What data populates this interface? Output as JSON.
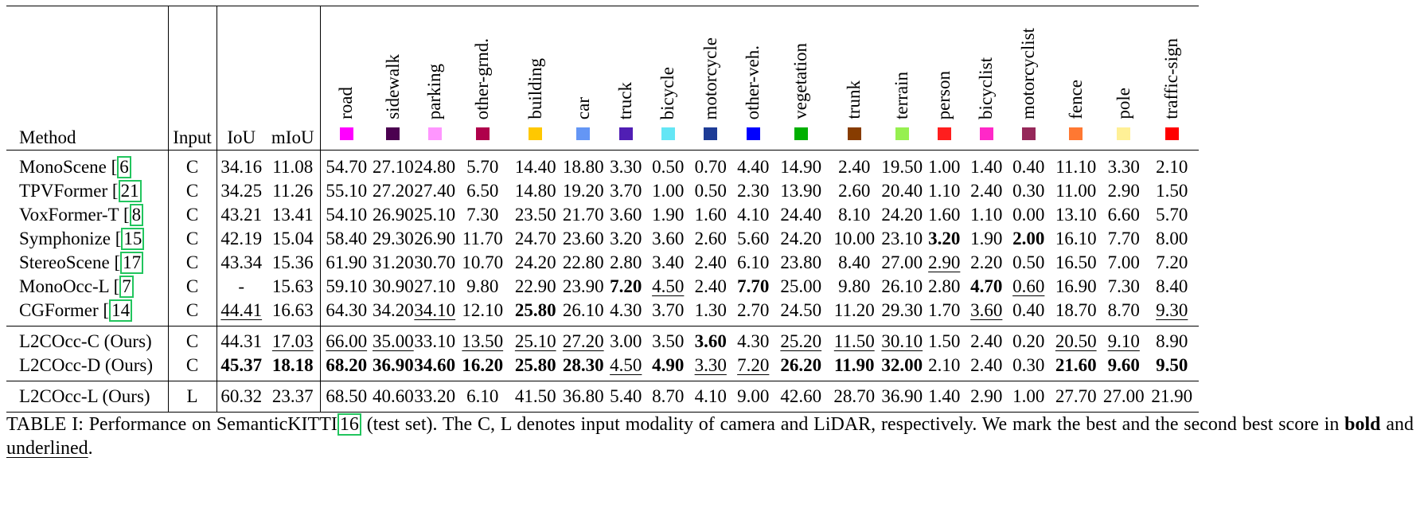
{
  "table": {
    "header": {
      "method": "Method",
      "input": "Input",
      "iou": "IoU",
      "miou": "mIoU"
    },
    "classes": [
      {
        "name": "road",
        "color": "#ff00ff"
      },
      {
        "name": "sidewalk",
        "color": "#4b0050"
      },
      {
        "name": "parking",
        "color": "#ff96ff"
      },
      {
        "name": "other-grnd.",
        "color": "#af004b"
      },
      {
        "name": "building",
        "color": "#ffc800"
      },
      {
        "name": "car",
        "color": "#6496f5"
      },
      {
        "name": "truck",
        "color": "#501eb4"
      },
      {
        "name": "bicycle",
        "color": "#64e6f5"
      },
      {
        "name": "motorcycle",
        "color": "#1e3c96"
      },
      {
        "name": "other-veh.",
        "color": "#0000ff"
      },
      {
        "name": "vegetation",
        "color": "#00af00"
      },
      {
        "name": "trunk",
        "color": "#873c00"
      },
      {
        "name": "terrain",
        "color": "#96f050"
      },
      {
        "name": "person",
        "color": "#ff1e1e"
      },
      {
        "name": "bicyclist",
        "color": "#ff28c8"
      },
      {
        "name": "motorcyclist",
        "color": "#96285a"
      },
      {
        "name": "fence",
        "color": "#ff7832"
      },
      {
        "name": "pole",
        "color": "#fff096"
      },
      {
        "name": "traffic-sign",
        "color": "#ff0000"
      }
    ],
    "rows": [
      {
        "method": "MonoScene",
        "ref": "6",
        "input": "C",
        "iou": "34.16",
        "miou": "11.08",
        "vals": [
          "54.70",
          "27.10",
          "24.80",
          "5.70",
          "14.40",
          "18.80",
          "3.30",
          "0.50",
          "0.70",
          "4.40",
          "14.90",
          "2.40",
          "19.50",
          "1.00",
          "1.40",
          "0.40",
          "11.10",
          "3.30",
          "2.10"
        ]
      },
      {
        "method": "TPVFormer",
        "ref": "21",
        "input": "C",
        "iou": "34.25",
        "miou": "11.26",
        "vals": [
          "55.10",
          "27.20",
          "27.40",
          "6.50",
          "14.80",
          "19.20",
          "3.70",
          "1.00",
          "0.50",
          "2.30",
          "13.90",
          "2.60",
          "20.40",
          "1.10",
          "2.40",
          "0.30",
          "11.00",
          "2.90",
          "1.50"
        ]
      },
      {
        "method": "VoxFormer-T",
        "ref": "8",
        "input": "C",
        "iou": "43.21",
        "miou": "13.41",
        "vals": [
          "54.10",
          "26.90",
          "25.10",
          "7.30",
          "23.50",
          "21.70",
          "3.60",
          "1.90",
          "1.60",
          "4.10",
          "24.40",
          "8.10",
          "24.20",
          "1.60",
          "1.10",
          "0.00",
          "13.10",
          "6.60",
          "5.70"
        ]
      },
      {
        "method": "Symphonize",
        "ref": "15",
        "input": "C",
        "iou": "42.19",
        "miou": "15.04",
        "vals": [
          "58.40",
          "29.30",
          "26.90",
          "11.70",
          "24.70",
          "23.60",
          "3.20",
          "3.60",
          "2.60",
          "5.60",
          "24.20",
          "10.00",
          "23.10",
          "3.20",
          "1.90",
          "2.00",
          "16.10",
          "7.70",
          "8.00"
        ]
      },
      {
        "method": "StereoScene",
        "ref": "17",
        "input": "C",
        "iou": "43.34",
        "miou": "15.36",
        "vals": [
          "61.90",
          "31.20",
          "30.70",
          "10.70",
          "24.20",
          "22.80",
          "2.80",
          "3.40",
          "2.40",
          "6.10",
          "23.80",
          "8.40",
          "27.00",
          "2.90",
          "2.20",
          "0.50",
          "16.50",
          "7.00",
          "7.20"
        ]
      },
      {
        "method": "MonoOcc-L",
        "ref": "7",
        "input": "C",
        "iou": "-",
        "miou": "15.63",
        "vals": [
          "59.10",
          "30.90",
          "27.10",
          "9.80",
          "22.90",
          "23.90",
          "7.20",
          "4.50",
          "2.40",
          "7.70",
          "25.00",
          "9.80",
          "26.10",
          "2.80",
          "4.70",
          "0.60",
          "16.90",
          "7.30",
          "8.40"
        ]
      },
      {
        "method": "CGFormer",
        "ref": "14",
        "input": "C",
        "iou": "44.41",
        "miou": "16.63",
        "vals": [
          "64.30",
          "34.20",
          "34.10",
          "12.10",
          "25.80",
          "26.10",
          "4.30",
          "3.70",
          "1.30",
          "2.70",
          "24.50",
          "11.20",
          "29.30",
          "1.70",
          "3.60",
          "0.40",
          "18.70",
          "8.70",
          "9.30"
        ]
      },
      {
        "method": "L2COcc-C (Ours)",
        "input": "C",
        "iou": "44.31",
        "miou": "17.03",
        "vals": [
          "66.00",
          "35.00",
          "33.10",
          "13.50",
          "25.10",
          "27.20",
          "3.00",
          "3.50",
          "3.60",
          "4.30",
          "25.20",
          "11.50",
          "30.10",
          "1.50",
          "2.40",
          "0.20",
          "20.50",
          "9.10",
          "8.90"
        ]
      },
      {
        "method": "L2COcc-D (Ours)",
        "input": "C",
        "iou": "45.37",
        "miou": "18.18",
        "vals": [
          "68.20",
          "36.90",
          "34.60",
          "16.20",
          "25.80",
          "28.30",
          "4.50",
          "4.90",
          "3.30",
          "7.20",
          "26.20",
          "11.90",
          "32.00",
          "2.10",
          "2.40",
          "0.30",
          "21.60",
          "9.60",
          "9.50"
        ]
      },
      {
        "method": "L2COcc-L (Ours)",
        "input": "L",
        "iou": "60.32",
        "miou": "23.37",
        "vals": [
          "68.50",
          "40.60",
          "33.20",
          "6.10",
          "41.50",
          "36.80",
          "5.40",
          "8.70",
          "4.10",
          "9.00",
          "42.60",
          "28.70",
          "36.90",
          "1.40",
          "2.90",
          "1.00",
          "27.70",
          "27.00",
          "21.90"
        ]
      }
    ]
  },
  "caption": {
    "part1": "TABLE I: Performance on SemanticKITTI",
    "ref": "16",
    "part2": " (test set). The C, L denotes input modality of camera and LiDAR, respectively. We mark the best and the second best score in ",
    "bold": "bold",
    "and": " and ",
    "underlined": "underlined",
    "end": "."
  }
}
